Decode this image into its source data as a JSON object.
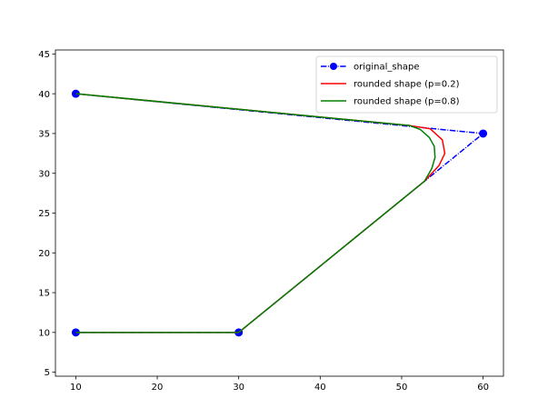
{
  "chart_data": {
    "type": "line",
    "title": "",
    "xlabel": "",
    "ylabel": "",
    "xlim": [
      7.5,
      62.5
    ],
    "ylim": [
      4.5,
      45.5
    ],
    "xticks": [
      10,
      20,
      30,
      40,
      50,
      60
    ],
    "yticks": [
      5,
      10,
      15,
      20,
      25,
      30,
      35,
      40,
      45
    ],
    "grid": false,
    "legend_position": "top-right",
    "series": [
      {
        "name": "original_shape",
        "color": "#0000ff",
        "line_style": "dash-dot",
        "marker": "circle",
        "x": [
          10,
          60,
          30,
          10
        ],
        "y": [
          40,
          35,
          10,
          10
        ]
      },
      {
        "name": "rounded shape (p=0.2)",
        "color": "#ff0000",
        "line_style": "solid",
        "marker": "none",
        "x": [
          10,
          51.0,
          53.5,
          55.0,
          55.3,
          54.6,
          52.8,
          30,
          10
        ],
        "y": [
          40,
          36.0,
          35.6,
          34.2,
          32.5,
          31.0,
          29.0,
          10,
          10
        ]
      },
      {
        "name": "rounded shape (p=0.8)",
        "color": "#008000",
        "line_style": "solid",
        "marker": "none",
        "x": [
          10,
          51.0,
          52.3,
          53.4,
          54.0,
          54.1,
          53.7,
          52.8,
          30,
          10
        ],
        "y": [
          40,
          36.0,
          35.5,
          34.5,
          33.4,
          32.0,
          30.6,
          29.0,
          10,
          10
        ]
      }
    ]
  }
}
